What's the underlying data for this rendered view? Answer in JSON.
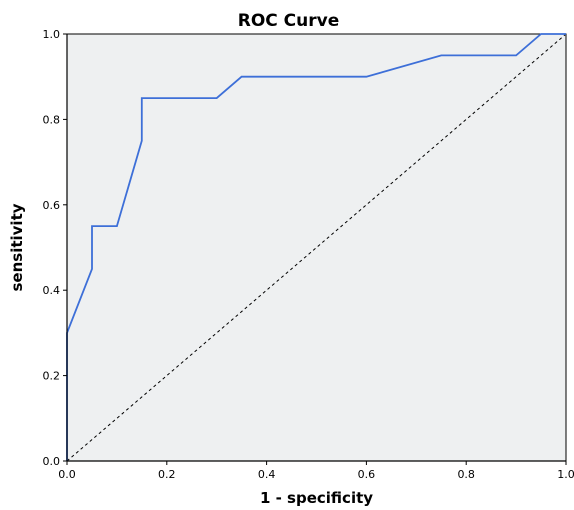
{
  "chart_data": {
    "type": "line",
    "title": "ROC Curve",
    "xlabel": "1 - specificity",
    "ylabel": "sensitivity",
    "xlim": [
      0,
      1
    ],
    "ylim": [
      0,
      1
    ],
    "x_ticks": [
      "0.0",
      "0.2",
      "0.4",
      "0.6",
      "0.8",
      "1.0"
    ],
    "y_ticks": [
      "0.0",
      "0.2",
      "0.4",
      "0.6",
      "0.8",
      "1.0"
    ],
    "grid": false,
    "series": [
      {
        "name": "",
        "style": "solid",
        "x": [
          0.0,
          0.0,
          0.05,
          0.05,
          0.1,
          0.15,
          0.15,
          0.3,
          0.35,
          0.6,
          0.75,
          0.9,
          0.95,
          1.0
        ],
        "y": [
          0.0,
          0.3,
          0.45,
          0.55,
          0.55,
          0.75,
          0.85,
          0.85,
          0.9,
          0.9,
          0.95,
          0.95,
          1.0,
          1.0
        ]
      },
      {
        "name": "",
        "style": "dashed",
        "x": [
          0.0,
          1.0
        ],
        "y": [
          0.0,
          1.0
        ]
      }
    ]
  },
  "colors": {
    "plot_background": "#EEF0F1",
    "roc_line": "#3D6FD8",
    "reference_line": "#000000",
    "axis": "#000000"
  }
}
